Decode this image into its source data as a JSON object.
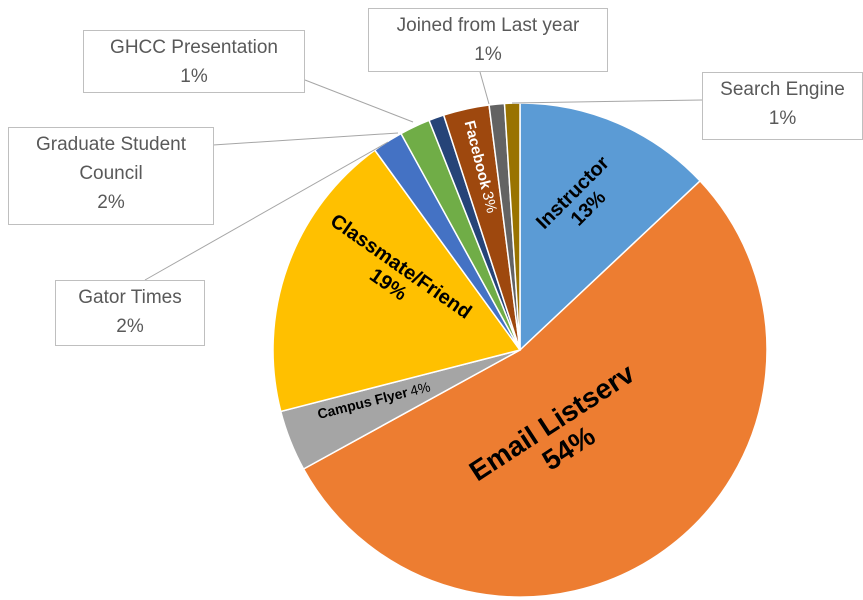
{
  "chart_data": {
    "type": "pie",
    "categories": [
      "Instructor",
      "Email Listserv",
      "Campus Flyer",
      "Classmate/Friend",
      "Gator Times",
      "Graduate Student Council",
      "GHCC Presentation",
      "Facebook",
      "Joined from Last year",
      "Search Engine"
    ],
    "values": [
      13,
      54,
      4,
      19,
      2,
      2,
      1,
      3,
      1,
      1
    ],
    "value_labels": [
      "13%",
      "54%",
      "4%",
      "19%",
      "2%",
      "2%",
      "1%",
      "3%",
      "1%",
      "1%"
    ],
    "colors": [
      "#5b9bd5",
      "#ed7d31",
      "#a5a5a5",
      "#ffc000",
      "#4472c4",
      "#70ad47",
      "#264478",
      "#9e480e",
      "#636363",
      "#997300"
    ]
  }
}
